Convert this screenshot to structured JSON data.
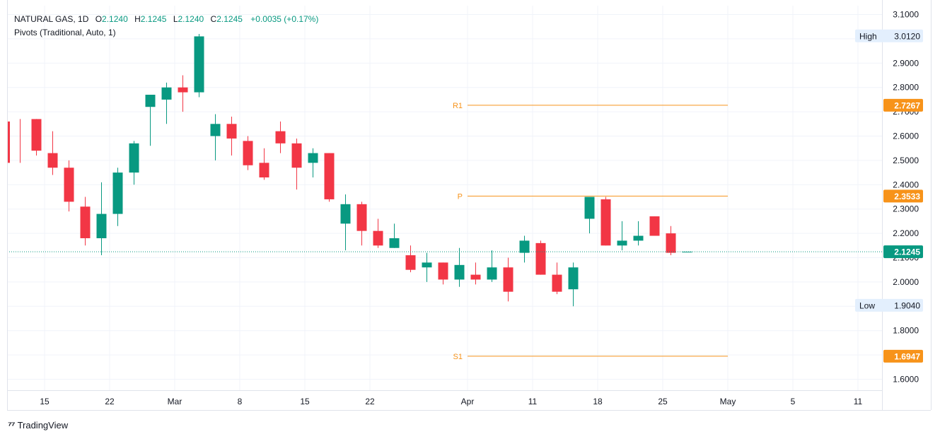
{
  "legend": {
    "symbol": "NATURAL GAS, 1D",
    "open_label": "O",
    "open": "2.1240",
    "high_label": "H",
    "high": "2.1245",
    "low_label": "L",
    "low": "2.1240",
    "close_label": "C",
    "close": "2.1245",
    "change": "+0.0035 (+0.17%)",
    "indicator": "Pivots (Traditional, Auto, 1)"
  },
  "brand": {
    "name": "TradingView"
  },
  "colors": {
    "up": "#089981",
    "down": "#f23645",
    "pivot": "#f7931a",
    "grid": "#f0f3fa",
    "price_line": "#089981"
  },
  "chart_data": {
    "type": "candlestick",
    "y_axis": {
      "min": 1.57,
      "max": 3.12,
      "ticks": [
        "1.6000",
        "1.7000",
        "1.8000",
        "1.9000",
        "2.0000",
        "2.1000",
        "2.2000",
        "2.3000",
        "2.4000",
        "2.5000",
        "2.6000",
        "2.7000",
        "2.8000",
        "2.9000",
        "3.0000",
        "3.1000"
      ],
      "tick_values": [
        1.6,
        1.7,
        1.8,
        1.9,
        2.0,
        2.1,
        2.2,
        2.3,
        2.4,
        2.5,
        2.6,
        2.7,
        2.8,
        2.9,
        3.0,
        3.1
      ]
    },
    "x_axis": {
      "labels": [
        "15",
        "22",
        "Mar",
        "8",
        "15",
        "22",
        "Apr",
        "11",
        "18",
        "25",
        "May",
        "5",
        "11"
      ],
      "label_index": [
        1.5,
        5.5,
        9.5,
        13.5,
        17.5,
        21.5,
        27.5,
        31.5,
        35.5,
        39.5,
        43.5,
        47.5,
        51.5
      ]
    },
    "candles": [
      {
        "o": 2.66,
        "h": 2.67,
        "l": 2.49,
        "c": 2.49
      },
      {
        "o": 2.67,
        "h": 2.67,
        "l": 2.52,
        "c": 2.54
      },
      {
        "o": 2.53,
        "h": 2.62,
        "l": 2.44,
        "c": 2.47
      },
      {
        "o": 2.47,
        "h": 2.5,
        "l": 2.29,
        "c": 2.33
      },
      {
        "o": 2.31,
        "h": 2.35,
        "l": 2.15,
        "c": 2.18
      },
      {
        "o": 2.18,
        "h": 2.41,
        "l": 2.11,
        "c": 2.28
      },
      {
        "o": 2.28,
        "h": 2.47,
        "l": 2.23,
        "c": 2.45
      },
      {
        "o": 2.45,
        "h": 2.58,
        "l": 2.4,
        "c": 2.57
      },
      {
        "o": 2.72,
        "h": 2.77,
        "l": 2.56,
        "c": 2.77
      },
      {
        "o": 2.75,
        "h": 2.82,
        "l": 2.65,
        "c": 2.8
      },
      {
        "o": 2.8,
        "h": 2.85,
        "l": 2.7,
        "c": 2.78
      },
      {
        "o": 2.78,
        "h": 3.02,
        "l": 2.76,
        "c": 3.01
      },
      {
        "o": 2.6,
        "h": 2.69,
        "l": 2.5,
        "c": 2.65
      },
      {
        "o": 2.65,
        "h": 2.68,
        "l": 2.52,
        "c": 2.59
      },
      {
        "o": 2.58,
        "h": 2.6,
        "l": 2.46,
        "c": 2.48
      },
      {
        "o": 2.49,
        "h": 2.55,
        "l": 2.42,
        "c": 2.43
      },
      {
        "o": 2.62,
        "h": 2.66,
        "l": 2.53,
        "c": 2.57
      },
      {
        "o": 2.57,
        "h": 2.59,
        "l": 2.38,
        "c": 2.47
      },
      {
        "o": 2.49,
        "h": 2.55,
        "l": 2.43,
        "c": 2.53
      },
      {
        "o": 2.53,
        "h": 2.53,
        "l": 2.33,
        "c": 2.34
      },
      {
        "o": 2.24,
        "h": 2.36,
        "l": 2.13,
        "c": 2.32
      },
      {
        "o": 2.32,
        "h": 2.33,
        "l": 2.15,
        "c": 2.21
      },
      {
        "o": 2.21,
        "h": 2.26,
        "l": 2.14,
        "c": 2.15
      },
      {
        "o": 2.14,
        "h": 2.24,
        "l": 2.14,
        "c": 2.18
      },
      {
        "o": 2.11,
        "h": 2.15,
        "l": 2.04,
        "c": 2.05
      },
      {
        "o": 2.06,
        "h": 2.12,
        "l": 2.0,
        "c": 2.08
      },
      {
        "o": 2.08,
        "h": 2.08,
        "l": 1.99,
        "c": 2.01
      },
      {
        "o": 2.01,
        "h": 2.14,
        "l": 1.98,
        "c": 2.07
      },
      {
        "o": 2.03,
        "h": 2.08,
        "l": 1.99,
        "c": 2.01
      },
      {
        "o": 2.01,
        "h": 2.13,
        "l": 2.0,
        "c": 2.06
      },
      {
        "o": 2.06,
        "h": 2.1,
        "l": 1.92,
        "c": 1.96
      },
      {
        "o": 2.12,
        "h": 2.19,
        "l": 2.08,
        "c": 2.17
      },
      {
        "o": 2.16,
        "h": 2.17,
        "l": 2.03,
        "c": 2.03
      },
      {
        "o": 2.03,
        "h": 2.08,
        "l": 1.95,
        "c": 1.96
      },
      {
        "o": 1.97,
        "h": 2.08,
        "l": 1.9,
        "c": 2.06
      },
      {
        "o": 2.26,
        "h": 2.35,
        "l": 2.2,
        "c": 2.35
      },
      {
        "o": 2.34,
        "h": 2.35,
        "l": 2.15,
        "c": 2.15
      },
      {
        "o": 2.15,
        "h": 2.25,
        "l": 2.13,
        "c": 2.17
      },
      {
        "o": 2.17,
        "h": 2.25,
        "l": 2.15,
        "c": 2.19
      },
      {
        "o": 2.27,
        "h": 2.27,
        "l": 2.19,
        "c": 2.19
      },
      {
        "o": 2.2,
        "h": 2.23,
        "l": 2.11,
        "c": 2.12
      },
      {
        "o": 2.124,
        "h": 2.1245,
        "l": 2.124,
        "c": 2.1245
      }
    ],
    "pivots": [
      {
        "name": "R1",
        "value": 2.7267,
        "label": "2.7267"
      },
      {
        "name": "P",
        "value": 2.3533,
        "label": "2.3533"
      },
      {
        "name": "S1",
        "value": 1.6947,
        "label": "1.6947"
      }
    ],
    "pivot_range": {
      "from_index": 27.5,
      "to_index": 43.5
    },
    "last_price": {
      "value": 2.1245,
      "label": "2.1245"
    },
    "high_marker": {
      "label": "High",
      "value": 3.012,
      "text": "3.0120"
    },
    "low_marker": {
      "label": "Low",
      "value": 1.904,
      "text": "1.9040"
    }
  }
}
